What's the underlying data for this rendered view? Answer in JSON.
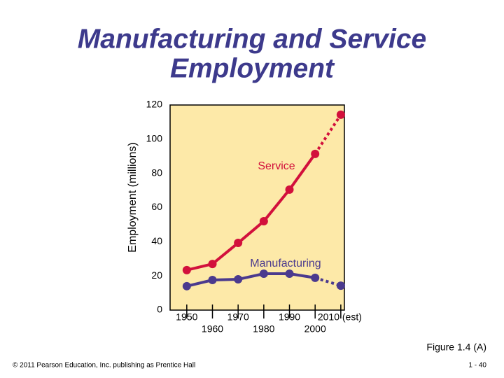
{
  "chart_data": {
    "type": "line",
    "title": [
      "Manufacturing and Service",
      "Employment"
    ],
    "y_label": "Employment (millions)",
    "x": [
      1950,
      1960,
      1970,
      1980,
      1990,
      2000,
      2010
    ],
    "series": [
      {
        "name": "Service",
        "color": "#d2103c",
        "values": [
          23.4,
          27,
          39.3,
          52,
          70.5,
          91.4,
          114.3
        ]
      },
      {
        "name": "Manufacturing",
        "color": "#4b3a8e",
        "values": [
          14,
          17.6,
          18,
          21.3,
          21.3,
          18.9,
          14.3
        ]
      }
    ],
    "dotted_after_x": 2000,
    "xlim": [
      1943.5,
      2011.4
    ],
    "xticks": [
      1950,
      1960,
      1970,
      1980,
      1990,
      2000,
      {
        "value": 2010,
        "label": "2010 (est)"
      }
    ],
    "ylim": [
      0,
      120
    ],
    "yticks": [
      0,
      20,
      40,
      60,
      80,
      100,
      120
    ],
    "background": "#fde9a8",
    "figure_label": "Figure 1.4 (A)",
    "copyright": "© 2011 Pearson Education, Inc. publishing as Prentice Hall",
    "page_number": "1 - 40"
  }
}
